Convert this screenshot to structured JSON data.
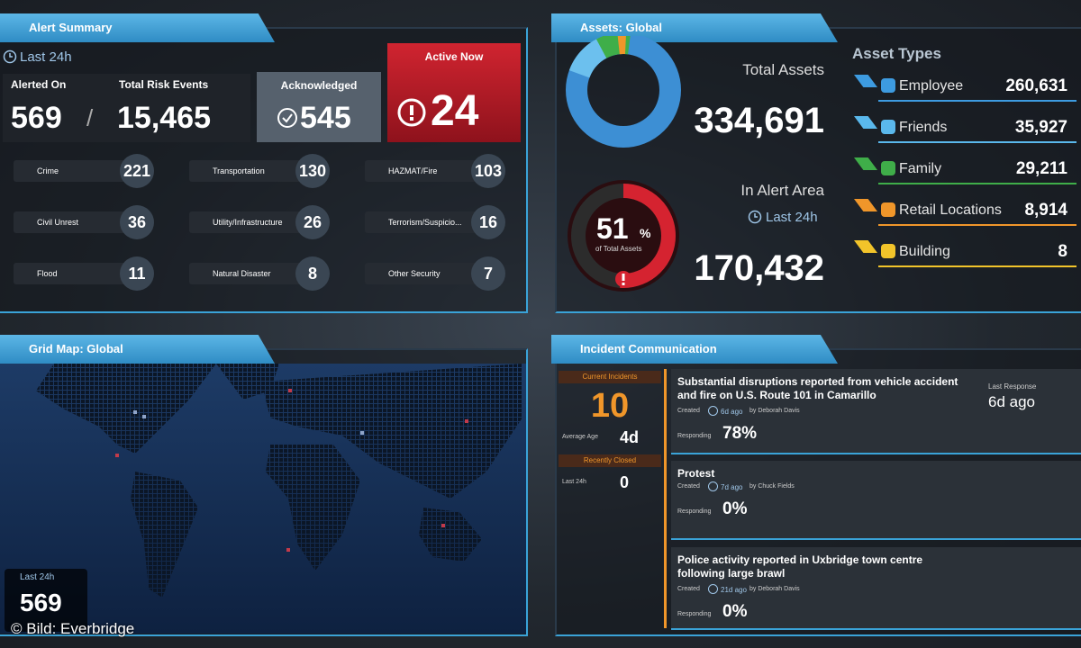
{
  "alert_summary": {
    "title": "Alert Summary",
    "period": "Last 24h",
    "alerted_on_label": "Alerted On",
    "alerted_on": "569",
    "separator": "/",
    "total_risk_label": "Total Risk Events",
    "total_risk": "15,465",
    "acknowledged_label": "Acknowledged",
    "acknowledged": "545",
    "active_label": "Active Now",
    "active": "24",
    "categories": [
      {
        "label": "Crime",
        "count": "221"
      },
      {
        "label": "Transportation",
        "count": "130"
      },
      {
        "label": "HAZMAT/Fire",
        "count": "103"
      },
      {
        "label": "Civil Unrest",
        "count": "36"
      },
      {
        "label": "Utility/Infrastructure",
        "count": "26"
      },
      {
        "label": "Terrorism/Suspicio...",
        "count": "16"
      },
      {
        "label": "Flood",
        "count": "11"
      },
      {
        "label": "Natural Disaster",
        "count": "8"
      },
      {
        "label": "Other Security",
        "count": "7"
      }
    ]
  },
  "assets": {
    "title": "Assets: Global",
    "total_label": "Total Assets",
    "total": "334,691",
    "alert_label": "In Alert Area",
    "period": "Last 24h",
    "alert": "170,432",
    "gauge": {
      "percent": 51,
      "unit": "%",
      "caption": "of Total Assets"
    },
    "types_title": "Asset Types",
    "types": [
      {
        "label": "Employee",
        "value": "260,631",
        "color": "#3d9be0"
      },
      {
        "label": "Friends",
        "value": "35,927",
        "color": "#5ab8ec"
      },
      {
        "label": "Family",
        "value": "29,211",
        "color": "#3fae49"
      },
      {
        "label": "Retail Locations",
        "value": "8,914",
        "color": "#f0962a"
      },
      {
        "label": "Building",
        "value": "8",
        "color": "#f2c42a"
      }
    ]
  },
  "grid_map": {
    "title": "Grid Map: Global",
    "period": "Last 24h",
    "count": "569"
  },
  "incidents": {
    "title": "Incident Communication",
    "current_label": "Current Incidents",
    "current": "10",
    "average_label": "Average Age",
    "average": "4d",
    "closed_label": "Recently Closed",
    "closed_period": "Last 24h",
    "closed": "0",
    "items": [
      {
        "title": "Substantial disruptions reported from vehicle accident and fire on U.S. Route 101 in Camarillo",
        "created": "Created",
        "ago": "6d ago",
        "by": "by Deborah Davis",
        "responding_label": "Responding",
        "responding": "78%",
        "last_response_label": "Last Response",
        "last_response": "6d ago"
      },
      {
        "title": "Protest",
        "created": "Created",
        "ago": "7d ago",
        "by": "by Chuck Fields",
        "responding_label": "Responding",
        "responding": "0%"
      },
      {
        "title": "Police activity reported in Uxbridge town centre following large brawl",
        "created": "Created",
        "ago": "21d ago",
        "by": "by Deborah Davis",
        "responding_label": "Responding",
        "responding": "0%"
      }
    ]
  },
  "watermark": "© Bild: Everbridge"
}
